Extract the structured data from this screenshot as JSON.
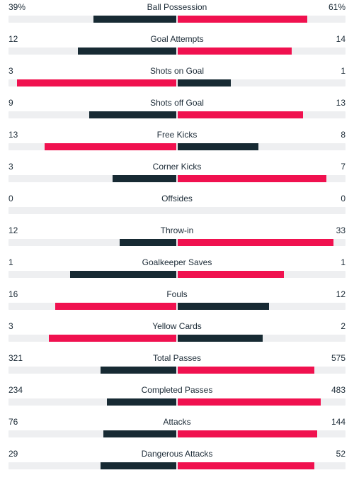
{
  "colors": {
    "leader": "#f0114f",
    "trailer": "#172a33",
    "track": "#eeeff1"
  },
  "stats": [
    {
      "label": "Ball Possession",
      "left": "39%",
      "right": "61%",
      "left_share": 0.39,
      "right_share": 0.61
    },
    {
      "label": "Goal Attempts",
      "left": "12",
      "right": "14",
      "left_share": 0.462,
      "right_share": 0.538
    },
    {
      "label": "Shots on Goal",
      "left": "3",
      "right": "1",
      "left_share": 0.75,
      "right_share": 0.25
    },
    {
      "label": "Shots off Goal",
      "left": "9",
      "right": "13",
      "left_share": 0.409,
      "right_share": 0.591
    },
    {
      "label": "Free Kicks",
      "left": "13",
      "right": "8",
      "left_share": 0.619,
      "right_share": 0.381
    },
    {
      "label": "Corner Kicks",
      "left": "3",
      "right": "7",
      "left_share": 0.3,
      "right_share": 0.7
    },
    {
      "label": "Offsides",
      "left": "0",
      "right": "0",
      "left_share": 0,
      "right_share": 0
    },
    {
      "label": "Throw-in",
      "left": "12",
      "right": "33",
      "left_share": 0.267,
      "right_share": 0.733
    },
    {
      "label": "Goalkeeper Saves",
      "left": "1",
      "right": "1",
      "left_share": 0.5,
      "right_share": 0.5
    },
    {
      "label": "Fouls",
      "left": "16",
      "right": "12",
      "left_share": 0.571,
      "right_share": 0.429
    },
    {
      "label": "Yellow Cards",
      "left": "3",
      "right": "2",
      "left_share": 0.6,
      "right_share": 0.4
    },
    {
      "label": "Total Passes",
      "left": "321",
      "right": "575",
      "left_share": 0.358,
      "right_share": 0.642
    },
    {
      "label": "Completed Passes",
      "left": "234",
      "right": "483",
      "left_share": 0.326,
      "right_share": 0.674
    },
    {
      "label": "Attacks",
      "left": "76",
      "right": "144",
      "left_share": 0.345,
      "right_share": 0.655
    },
    {
      "label": "Dangerous Attacks",
      "left": "29",
      "right": "52",
      "left_share": 0.358,
      "right_share": 0.642
    }
  ]
}
